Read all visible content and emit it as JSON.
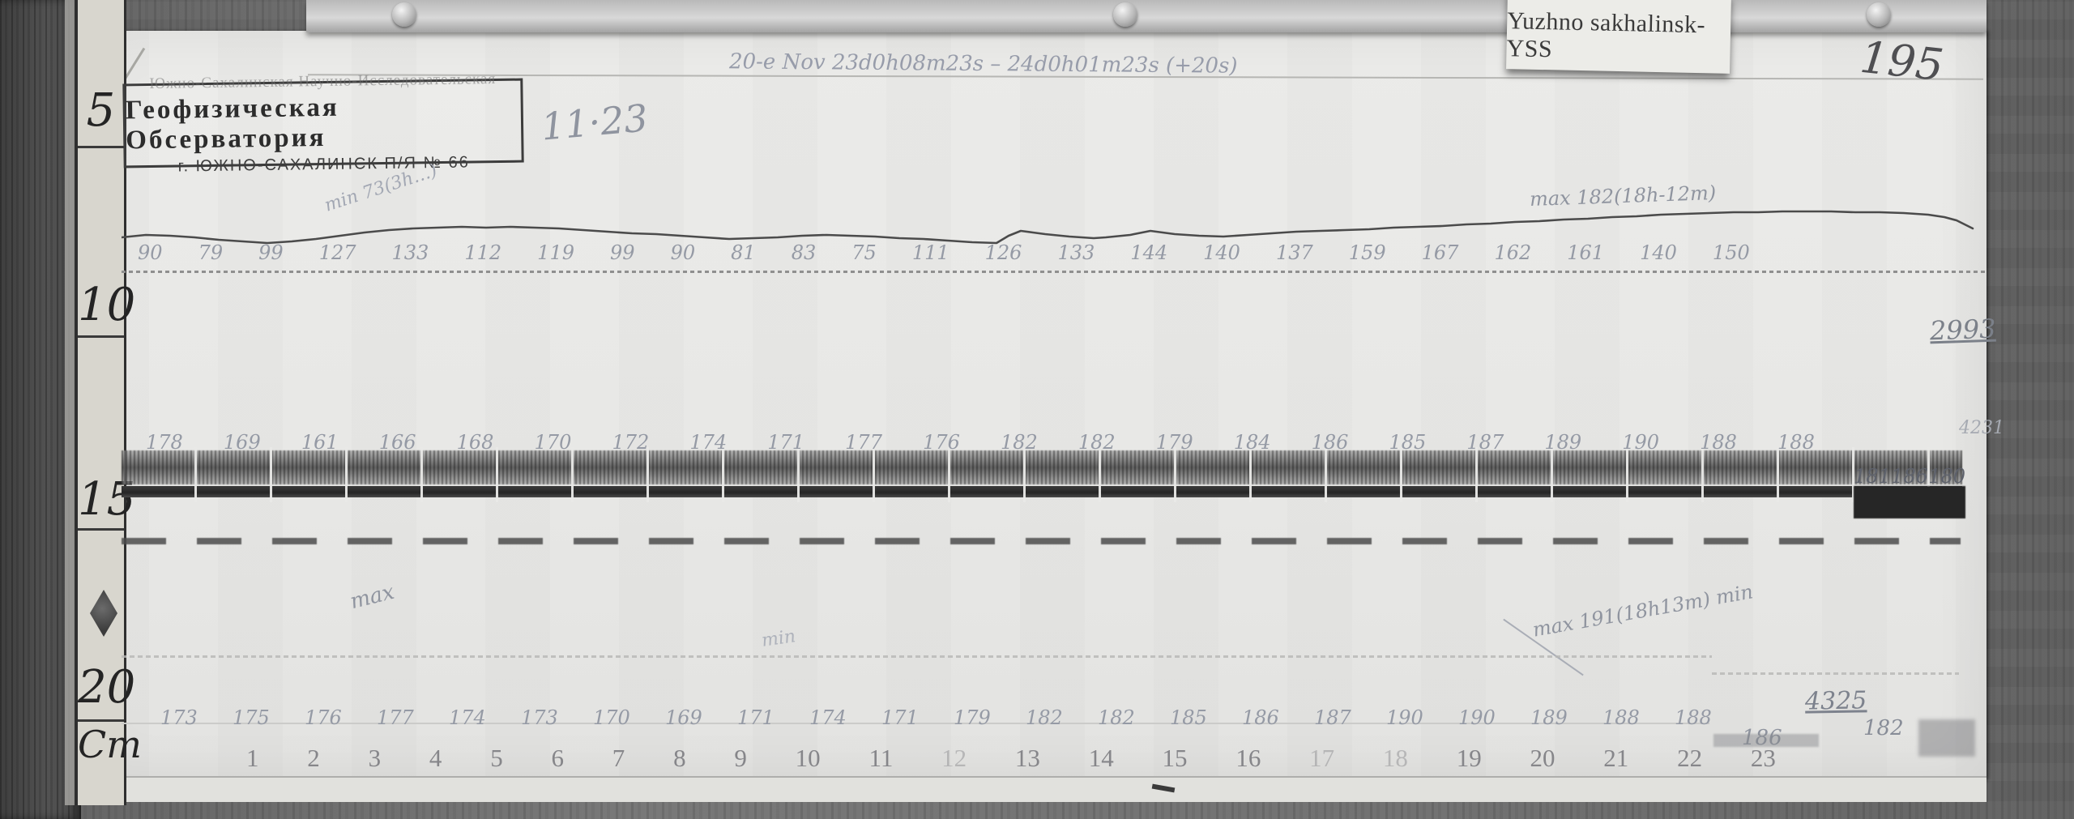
{
  "sticker": {
    "label": "Yuzhno sakhalinsk-YSS"
  },
  "page_number": "195",
  "header_note": "20-e Nov 23d0h08m23s – 24d0h01m23s (+20s)",
  "stamp": {
    "line1": "Южно-Сахалинская Научно-Исследовательская",
    "line2": "Геофизическая Обсерватория",
    "line3": "г. ЮЖНО-САХАЛИНСК  П/Я № 66",
    "handwritten": "11·23"
  },
  "ruler": {
    "marks": [
      "5",
      "10",
      "15",
      "20"
    ],
    "unit": "Cm"
  },
  "annotations": {
    "min_top": "min 73(3h…)",
    "max_top": "max 182(18h-12m)",
    "num_2993": "2993",
    "num_4231": "4231",
    "word_max": "max",
    "word_min": "min",
    "max_bottom": "max 191(18h13m) min",
    "num_4325": "4325",
    "val_186": "186",
    "val_182": "182"
  },
  "rows": {
    "trace1_values": [
      "90",
      "79",
      "99",
      "127",
      "133",
      "112",
      "119",
      "99",
      "90",
      "81",
      "83",
      "75",
      "111",
      "126",
      "133",
      "144",
      "140",
      "137",
      "159",
      "167",
      "162",
      "161",
      "140",
      "150"
    ],
    "band_values": [
      "178",
      "169",
      "161",
      "166",
      "168",
      "170",
      "172",
      "174",
      "171",
      "177",
      "176",
      "182",
      "182",
      "179",
      "184",
      "186",
      "185",
      "187",
      "189",
      "190",
      "188",
      "188"
    ],
    "band_right_values": [
      "181",
      "186",
      "180"
    ],
    "trace2_values": [
      "173",
      "175",
      "176",
      "177",
      "174",
      "173",
      "170",
      "169",
      "171",
      "174",
      "171",
      "179",
      "182",
      "182",
      "185",
      "186",
      "187",
      "190",
      "190",
      "189",
      "188",
      "188"
    ],
    "hours": [
      "1",
      "2",
      "3",
      "4",
      "5",
      "6",
      "7",
      "8",
      "9",
      "10",
      "11",
      "12",
      "13",
      "14",
      "15",
      "16",
      "17",
      "18",
      "19",
      "20",
      "21",
      "22",
      "23"
    ]
  }
}
